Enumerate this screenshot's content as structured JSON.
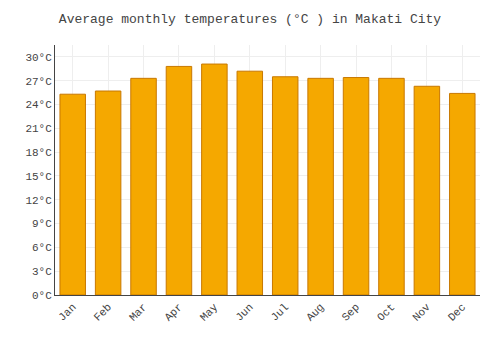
{
  "chart_data": {
    "type": "bar",
    "title": "Average monthly temperatures (°C ) in Makati City",
    "categories": [
      "Jan",
      "Feb",
      "Mar",
      "Apr",
      "May",
      "Jun",
      "Jul",
      "Aug",
      "Sep",
      "Oct",
      "Nov",
      "Dec"
    ],
    "values": [
      25.3,
      25.7,
      27.3,
      28.8,
      29.1,
      28.2,
      27.5,
      27.3,
      27.4,
      27.3,
      26.3,
      25.4
    ],
    "color": "#F5A800",
    "ylim": [
      0,
      31.5
    ],
    "yticks": [
      {
        "value": 0,
        "label": "0°C"
      },
      {
        "value": 3,
        "label": "3°C"
      },
      {
        "value": 6,
        "label": "6°C"
      },
      {
        "value": 9,
        "label": "9°C"
      },
      {
        "value": 12,
        "label": "12°C"
      },
      {
        "value": 15,
        "label": "15°C"
      },
      {
        "value": 18,
        "label": "18°C"
      },
      {
        "value": 21,
        "label": "21°C"
      },
      {
        "value": 24,
        "label": "24°C"
      },
      {
        "value": 27,
        "label": "27°C"
      },
      {
        "value": 30,
        "label": "30°C"
      }
    ],
    "grid": true
  }
}
